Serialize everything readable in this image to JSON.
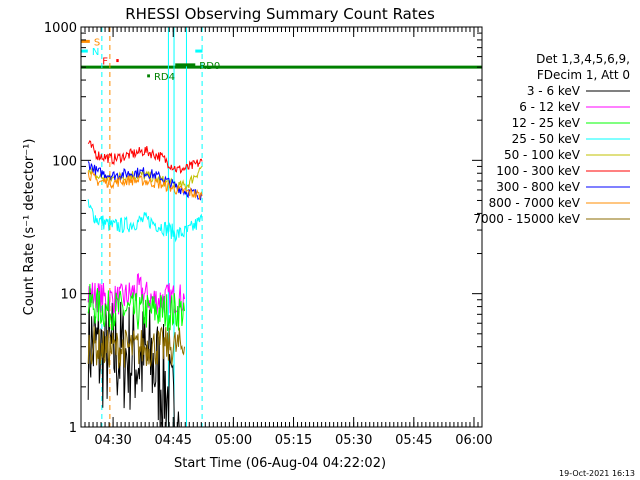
{
  "chart_data": {
    "type": "line",
    "title": "RHESSI Observing Summary Count Rates",
    "xlabel": "Start Time (06-Aug-04 04:22:02)",
    "ylabel": "Count Rate (s⁻¹ detector⁻¹)",
    "yscale": "log",
    "ylim": [
      1,
      1000
    ],
    "xlim_minutes": [
      0,
      100
    ],
    "x_ticks": [
      {
        "label": "04:30",
        "minute": 8
      },
      {
        "label": "04:45",
        "minute": 23
      },
      {
        "label": "05:00",
        "minute": 38
      },
      {
        "label": "05:15",
        "minute": 53
      },
      {
        "label": "05:30",
        "minute": 68
      },
      {
        "label": "05:45",
        "minute": 83
      },
      {
        "label": "06:00",
        "minute": 98
      }
    ],
    "y_ticks": [
      {
        "label": "1",
        "value": 1
      },
      {
        "label": "10",
        "value": 10
      },
      {
        "label": "100",
        "value": 100
      },
      {
        "label": "1000",
        "value": 1000
      }
    ],
    "legend": {
      "header": [
        "Det 1,3,4,5,6,9,",
        "FDecim 1, Att 0"
      ],
      "position": "right"
    },
    "series": [
      {
        "name": "3 - 6 keV",
        "color": "#000000",
        "x": [
          1.8,
          5,
          8,
          12,
          15,
          18,
          21,
          22.5,
          24.5
        ],
        "values": [
          4.5,
          3.5,
          3.6,
          3.4,
          3.2,
          3.0,
          2.0,
          1.3,
          1.0
        ],
        "noise": 0.45
      },
      {
        "name": "6 - 12 keV",
        "color": "#ff00ff",
        "x": [
          1.8,
          6,
          10,
          14.5,
          17,
          20,
          22,
          25.8
        ],
        "values": [
          10,
          9.2,
          9.0,
          10.8,
          9.2,
          9.0,
          9.3,
          9.1
        ],
        "noise": 0.12
      },
      {
        "name": "12 - 25 keV",
        "color": "#00ff00",
        "x": [
          1.8,
          6,
          10,
          14,
          18,
          22,
          25.8
        ],
        "values": [
          8.5,
          7.5,
          7.6,
          7.2,
          7.4,
          7.4,
          7.4
        ],
        "noise": 0.15
      },
      {
        "name": "25 - 50 keV",
        "color": "#00ffff",
        "x": [
          1.8,
          4,
          8,
          12,
          16,
          20,
          24,
          26.5,
          30.2
        ],
        "values": [
          45,
          36,
          32,
          33,
          36,
          32,
          28,
          29,
          36
        ],
        "noise": 0.06
      },
      {
        "name": "50 - 100 keV",
        "color": "#c0c000",
        "x": [
          1.8,
          4,
          8,
          12,
          16,
          20,
          24,
          26.5,
          30.2
        ],
        "values": [
          90,
          75,
          73,
          78,
          77,
          71,
          64,
          65,
          90
        ],
        "noise": 0.04
      },
      {
        "name": "100 - 300 keV",
        "color": "#ff0000",
        "x": [
          1.8,
          4,
          8,
          12,
          16,
          20,
          24,
          26.5,
          30.2
        ],
        "values": [
          135,
          110,
          102,
          110,
          118,
          106,
          85,
          87,
          98
        ],
        "noise": 0.04
      },
      {
        "name": "300 - 800 keV",
        "color": "#0000ff",
        "x": [
          1.8,
          4,
          8,
          12,
          16,
          20,
          24,
          26.5,
          30.2
        ],
        "values": [
          95,
          82,
          77,
          80,
          82,
          74,
          63,
          58,
          55
        ],
        "noise": 0.04
      },
      {
        "name": "800 - 7000 keV",
        "color": "#ff8c00",
        "x": [
          1.8,
          4,
          8,
          12,
          16,
          20,
          24,
          26.5,
          30.2
        ],
        "values": [
          80,
          70,
          68,
          71,
          70,
          66,
          60,
          58,
          54
        ],
        "noise": 0.04
      },
      {
        "name": "7000 - 15000 keV",
        "color": "#8b6b00",
        "x": [
          1.8,
          6,
          10,
          14,
          18,
          22,
          25.8
        ],
        "values": [
          4.2,
          3.8,
          3.9,
          3.9,
          4.0,
          4.0,
          4.0
        ],
        "noise": 0.15
      }
    ],
    "annotations": [
      {
        "label": "S",
        "color": "#ff8c00",
        "x0": 0,
        "x1": 2.2,
        "y": 780
      },
      {
        "label": "N",
        "color": "#00ffff",
        "x0": 0,
        "x1": 1.7,
        "y": 660
      },
      {
        "label": "F",
        "color": "#ff0000",
        "x0": 8.8,
        "x1": 9.4,
        "y": 560
      },
      {
        "label": "RD0",
        "color": "#008000",
        "x0": 23.5,
        "x1": 28.5,
        "y": 520
      },
      {
        "label": "RD4",
        "color": "#008000",
        "x0": 16.5,
        "x1": 17.2,
        "y": 430
      },
      {
        "label": "",
        "color": "#00ffff",
        "x0": 28.5,
        "x1": 30.3,
        "y": 660
      }
    ],
    "reference_lines": [
      {
        "name": "green-baseline",
        "color": "#008000",
        "y": 500
      },
      {
        "name": "cyan-left-edge",
        "color": "#00ffff",
        "x": 0
      },
      {
        "name": "cyan-dashed-1",
        "color": "#00ffff",
        "x": 5.2,
        "dashed": true
      },
      {
        "name": "orange-dashed",
        "color": "#ff8c00",
        "x": 7.2,
        "dashed": true
      },
      {
        "name": "cyan-solid-left",
        "color": "#00ffff",
        "x": 21.8
      },
      {
        "name": "cyan-solid-right",
        "color": "#00ffff",
        "x": 23.2
      },
      {
        "name": "cyan-solid-right2",
        "color": "#00ffff",
        "x": 26.3
      },
      {
        "name": "cyan-dashed-2",
        "color": "#00ffff",
        "x": 30.2,
        "dashed": true
      }
    ]
  },
  "footer": {
    "date_stamp": "19-Oct-2021 16:13"
  }
}
